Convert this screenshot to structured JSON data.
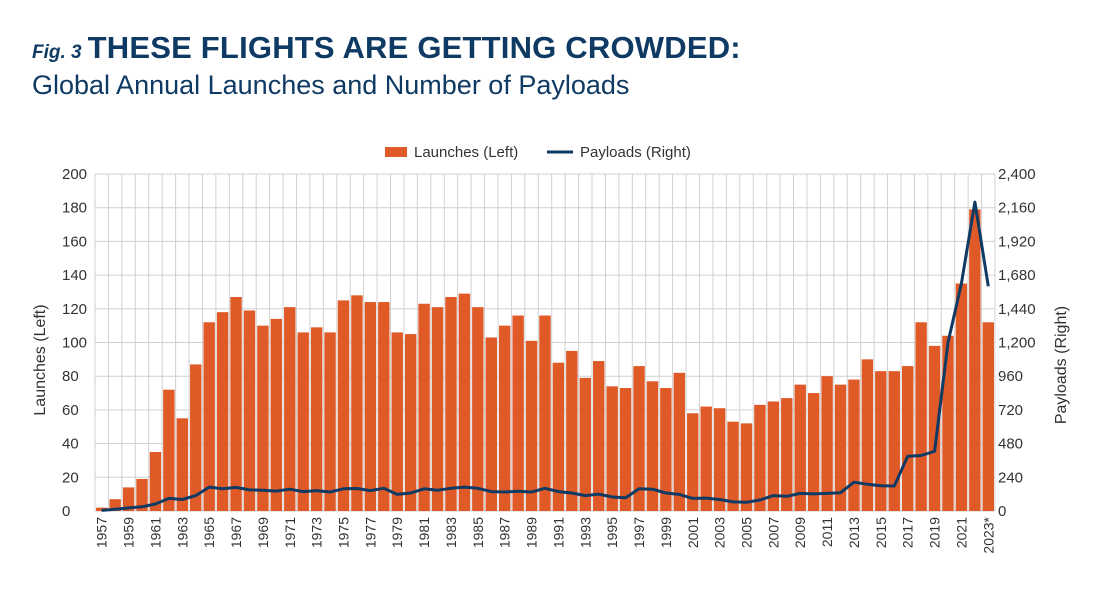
{
  "header": {
    "fig_label": "Fig. 3",
    "title": "THESE FLIGHTS ARE GETTING CROWDED:",
    "subtitle": "Global Annual Launches and Number of Payloads"
  },
  "colors": {
    "launches": "#e05a28",
    "payloads": "#0f3a63",
    "title": "#0f3a63",
    "grid": "#d0d0d0"
  },
  "chart_data": {
    "type": "bar",
    "legend_position": "top-center",
    "grid": true,
    "x": [
      "1957",
      "1958",
      "1959",
      "1960",
      "1961",
      "1962",
      "1963",
      "1964",
      "1965",
      "1966",
      "1967",
      "1968",
      "1969",
      "1970",
      "1971",
      "1972",
      "1973",
      "1974",
      "1975",
      "1976",
      "1977",
      "1978",
      "1979",
      "1980",
      "1981",
      "1982",
      "1983",
      "1984",
      "1985",
      "1986",
      "1987",
      "1988",
      "1989",
      "1990",
      "1991",
      "1992",
      "1993",
      "1994",
      "1995",
      "1996",
      "1997",
      "1998",
      "1999",
      "2000",
      "2001",
      "2002",
      "2003",
      "2004",
      "2005",
      "2006",
      "2007",
      "2008",
      "2009",
      "2010",
      "2011",
      "2012",
      "2013",
      "2014",
      "2015",
      "2016",
      "2017",
      "2018",
      "2019",
      "2020",
      "2021",
      "2022",
      "2023*"
    ],
    "x_tick_labels": [
      "1957",
      "1959",
      "1961",
      "1963",
      "1965",
      "1967",
      "1969",
      "1971",
      "1973",
      "1975",
      "1977",
      "1979",
      "1981",
      "1983",
      "1985",
      "1987",
      "1989",
      "1991",
      "1993",
      "1995",
      "1997",
      "1999",
      "2001",
      "2003",
      "2005",
      "2007",
      "2009",
      "2011",
      "2013",
      "2015",
      "2017",
      "2019",
      "2021",
      "2023*"
    ],
    "series": [
      {
        "name": "Launches (Left)",
        "type": "bar",
        "axis": "left",
        "values": [
          2,
          7,
          14,
          19,
          35,
          72,
          55,
          87,
          112,
          118,
          127,
          119,
          110,
          114,
          121,
          106,
          109,
          106,
          125,
          128,
          124,
          124,
          106,
          105,
          123,
          121,
          127,
          129,
          121,
          103,
          110,
          116,
          101,
          116,
          88,
          95,
          79,
          89,
          74,
          73,
          86,
          77,
          73,
          82,
          58,
          62,
          61,
          53,
          52,
          63,
          65,
          67,
          75,
          70,
          80,
          75,
          78,
          90,
          83,
          83,
          86,
          112,
          98,
          104,
          135,
          179,
          112
        ]
      },
      {
        "name": "Payloads (Right)",
        "type": "line",
        "axis": "right",
        "values": [
          4,
          12,
          22,
          30,
          50,
          90,
          82,
          110,
          170,
          158,
          168,
          150,
          148,
          142,
          155,
          138,
          145,
          135,
          158,
          160,
          145,
          162,
          118,
          128,
          158,
          148,
          162,
          170,
          162,
          138,
          135,
          140,
          135,
          162,
          138,
          128,
          110,
          120,
          100,
          95,
          158,
          155,
          128,
          118,
          90,
          92,
          82,
          65,
          62,
          78,
          110,
          105,
          125,
          122,
          125,
          130,
          205,
          190,
          180,
          178,
          390,
          395,
          425,
          1200,
          1620,
          2200,
          1600
        ]
      }
    ],
    "y_left": {
      "label": "Launches (Left)",
      "min": 0,
      "max": 200,
      "ticks": [
        "0",
        "20",
        "40",
        "60",
        "80",
        "100",
        "120",
        "140",
        "160",
        "180",
        "200"
      ]
    },
    "y_right": {
      "label": "Payloads (Right)",
      "min": 0,
      "max": 2400,
      "ticks": [
        "0",
        "240",
        "480",
        "720",
        "960",
        "1,200",
        "1,440",
        "1,680",
        "1,920",
        "2,160",
        "2,400"
      ]
    }
  }
}
